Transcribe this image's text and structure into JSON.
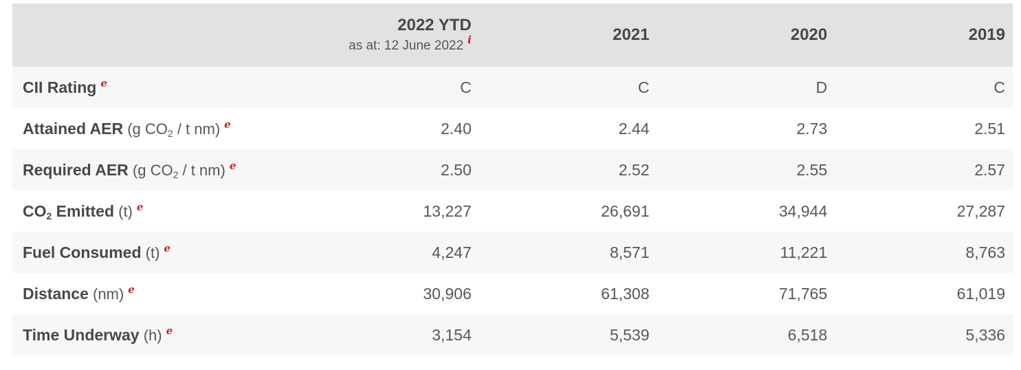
{
  "colors": {
    "footnote_red": "#c52127",
    "header_bg": "#e2e2e1",
    "stripe_bg": "#f7f7f6",
    "text_dark": "#45494c",
    "text_regular": "#54575a"
  },
  "table": {
    "header": {
      "col_2022": {
        "title": "2022 YTD",
        "subtitle": "as at: 12 June 2022",
        "footnote": "i"
      },
      "col_2021": "2021",
      "col_2020": "2020",
      "col_2019": "2019"
    },
    "rows": [
      {
        "label_pre": "CII Rating",
        "label_sub": "",
        "label_post": "",
        "unit_pre": "",
        "unit_sub": "",
        "unit_post": "",
        "footnote": "e",
        "values": [
          "C",
          "C",
          "D",
          "C"
        ]
      },
      {
        "label_pre": "Attained AER",
        "label_sub": "",
        "label_post": "",
        "unit_pre": " (g CO",
        "unit_sub": "2",
        "unit_post": " / t nm)",
        "footnote": "e",
        "values": [
          "2.40",
          "2.44",
          "2.73",
          "2.51"
        ]
      },
      {
        "label_pre": "Required AER",
        "label_sub": "",
        "label_post": "",
        "unit_pre": " (g CO",
        "unit_sub": "2",
        "unit_post": " / t nm)",
        "footnote": "e",
        "values": [
          "2.50",
          "2.52",
          "2.55",
          "2.57"
        ]
      },
      {
        "label_pre": "CO",
        "label_sub": "2",
        "label_post": " Emitted",
        "unit_pre": " (t)",
        "unit_sub": "",
        "unit_post": "",
        "footnote": "e",
        "values": [
          "13,227",
          "26,691",
          "34,944",
          "27,287"
        ]
      },
      {
        "label_pre": "Fuel Consumed",
        "label_sub": "",
        "label_post": "",
        "unit_pre": " (t)",
        "unit_sub": "",
        "unit_post": "",
        "footnote": "e",
        "values": [
          "4,247",
          "8,571",
          "11,221",
          "8,763"
        ]
      },
      {
        "label_pre": "Distance",
        "label_sub": "",
        "label_post": "",
        "unit_pre": " (nm)",
        "unit_sub": "",
        "unit_post": "",
        "footnote": "e",
        "values": [
          "30,906",
          "61,308",
          "71,765",
          "61,019"
        ]
      },
      {
        "label_pre": "Time Underway",
        "label_sub": "",
        "label_post": "",
        "unit_pre": " (h)",
        "unit_sub": "",
        "unit_post": "",
        "footnote": "e",
        "values": [
          "3,154",
          "5,539",
          "6,518",
          "5,336"
        ]
      }
    ]
  }
}
